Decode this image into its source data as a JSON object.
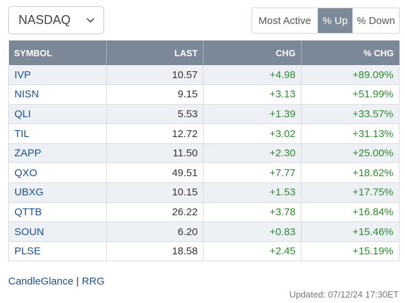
{
  "exchange": {
    "selected": "NASDAQ"
  },
  "filters": {
    "buttons": [
      {
        "label": "Most Active",
        "active": false
      },
      {
        "label": "% Up",
        "active": true
      },
      {
        "label": "% Down",
        "active": false
      }
    ]
  },
  "table": {
    "headers": {
      "symbol": "SYMBOL",
      "last": "LAST",
      "chg": "CHG",
      "pct": "% CHG"
    },
    "rows": [
      {
        "symbol": "IVP",
        "last": "10.57",
        "chg": "+4.98",
        "pct": "+89.09%"
      },
      {
        "symbol": "NISN",
        "last": "9.15",
        "chg": "+3.13",
        "pct": "+51.99%"
      },
      {
        "symbol": "QLI",
        "last": "5.53",
        "chg": "+1.39",
        "pct": "+33.57%"
      },
      {
        "symbol": "TIL",
        "last": "12.72",
        "chg": "+3.02",
        "pct": "+31.13%"
      },
      {
        "symbol": "ZAPP",
        "last": "11.50",
        "chg": "+2.30",
        "pct": "+25.00%"
      },
      {
        "symbol": "QXO",
        "last": "49.51",
        "chg": "+7.77",
        "pct": "+18.62%"
      },
      {
        "symbol": "UBXG",
        "last": "10.15",
        "chg": "+1.53",
        "pct": "+17.75%"
      },
      {
        "symbol": "QTTB",
        "last": "26.22",
        "chg": "+3.78",
        "pct": "+16.84%"
      },
      {
        "symbol": "SOUN",
        "last": "6.20",
        "chg": "+0.83",
        "pct": "+15.46%"
      },
      {
        "symbol": "PLSE",
        "last": "18.58",
        "chg": "+2.45",
        "pct": "+15.19%"
      }
    ]
  },
  "footer": {
    "link1": "CandleGlance",
    "separator": "|",
    "link2": "RRG",
    "updated": "Updated: 07/12/24 17:30ET"
  },
  "colors": {
    "header_bg": "#7b8898",
    "active_button": "#7d8a99",
    "link": "#1d4f8c",
    "positive": "#2c8a2c",
    "row_stripe": "#edf1f6"
  }
}
